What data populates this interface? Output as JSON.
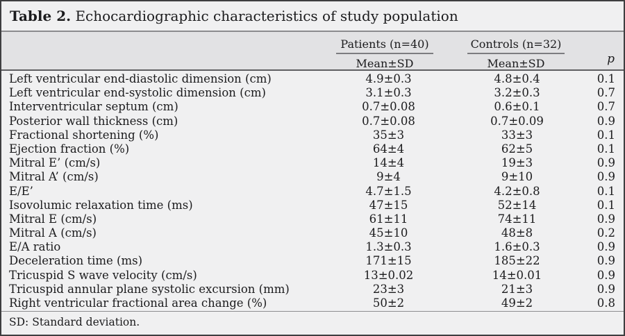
{
  "table": {
    "title_label": "Table 2.",
    "title_text": "Echocardiographic characteristics of study population",
    "col_groups": [
      {
        "label": "Patients (n=40)",
        "sub": "Mean±SD"
      },
      {
        "label": "Controls (n=32)",
        "sub": "Mean±SD"
      }
    ],
    "p_header": "p",
    "rows": [
      {
        "label": "Left ventricular end-diastolic dimension (cm)",
        "patients": "4.9±0.3",
        "controls": "4.8±0.4",
        "p": "0.1"
      },
      {
        "label": "Left ventricular end-systolic dimension (cm)",
        "patients": "3.1±0.3",
        "controls": "3.2±0.3",
        "p": "0.7"
      },
      {
        "label": "Interventricular septum (cm)",
        "patients": "0.7±0.08",
        "controls": "0.6±0.1",
        "p": "0.7"
      },
      {
        "label": "Posterior wall thickness (cm)",
        "patients": "0.7±0.08",
        "controls": "0.7±0.09",
        "p": "0.9"
      },
      {
        "label": "Fractional shortening (%)",
        "patients": "35±3",
        "controls": "33±3",
        "p": "0.1"
      },
      {
        "label": "Ejection fraction (%)",
        "patients": "64±4",
        "controls": "62±5",
        "p": "0.1"
      },
      {
        "label": "Mitral E’ (cm/s)",
        "patients": "14±4",
        "controls": "19±3",
        "p": "0.9"
      },
      {
        "label": "Mitral A’ (cm/s)",
        "patients": "9±4",
        "controls": "9±10",
        "p": "0.9"
      },
      {
        "label": "E/E’",
        "patients": "4.7±1.5",
        "controls": "4.2±0.8",
        "p": "0.1"
      },
      {
        "label": "Isovolumic relaxation time (ms)",
        "patients": "47±15",
        "controls": "52±14",
        "p": "0.1"
      },
      {
        "label": "Mitral E (cm/s)",
        "patients": "61±11",
        "controls": "74±11",
        "p": "0.9"
      },
      {
        "label": "Mitral A (cm/s)",
        "patients": "45±10",
        "controls": "48±8",
        "p": "0.2"
      },
      {
        "label": "E/A ratio",
        "patients": "1.3±0.3",
        "controls": "1.6±0.3",
        "p": "0.9"
      },
      {
        "label": "Deceleration time (ms)",
        "patients": "171±15",
        "controls": "185±22",
        "p": "0.9"
      },
      {
        "label": "Tricuspid S wave velocity (cm/s)",
        "patients": "13±0.02",
        "controls": "14±0.01",
        "p": "0.9"
      },
      {
        "label": "Tricuspid annular plane systolic excursion (mm)",
        "patients": "23±3",
        "controls": "21±3",
        "p": "0.9"
      },
      {
        "label": "Right ventricular fractional area change (%)",
        "patients": "50±2",
        "controls": "49±2",
        "p": "0.8"
      }
    ],
    "footnote": "SD: Standard deviation."
  },
  "colors": {
    "card_background": "#f0f0f1",
    "header_band_background": "#e2e2e4",
    "outer_border": "#3e3e40",
    "rule_color": "#7f7f82",
    "text_color": "#1b1b1d"
  }
}
